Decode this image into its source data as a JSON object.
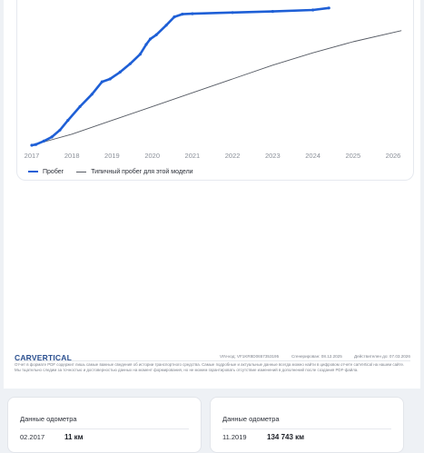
{
  "chart_data": {
    "type": "line",
    "x_ticks": [
      "2017",
      "2018",
      "2019",
      "2020",
      "2021",
      "2022",
      "2023",
      "2024",
      "2025",
      "2026"
    ],
    "xlim": [
      2017,
      2026
    ],
    "grid": false,
    "legend_position": "bottom-left",
    "series": [
      {
        "name": "Пробег",
        "color": "#1e5fd6",
        "style": "solid-thick",
        "points": [
          [
            2017.0,
            0
          ],
          [
            2017.1,
            0.5
          ],
          [
            2017.3,
            3
          ],
          [
            2017.5,
            6
          ],
          [
            2017.7,
            11
          ],
          [
            2017.9,
            18
          ],
          [
            2018.2,
            28
          ],
          [
            2018.5,
            37
          ],
          [
            2018.75,
            46
          ],
          [
            2018.95,
            48
          ],
          [
            2019.2,
            53
          ],
          [
            2019.45,
            59
          ],
          [
            2019.7,
            66
          ],
          [
            2019.85,
            73
          ],
          [
            2019.95,
            77
          ],
          [
            2020.1,
            80
          ],
          [
            2020.35,
            87
          ],
          [
            2020.55,
            93
          ],
          [
            2020.75,
            95
          ],
          [
            2021.0,
            95.3
          ],
          [
            2022.0,
            96.2
          ],
          [
            2023.0,
            97.0
          ],
          [
            2024.0,
            98.0
          ],
          [
            2024.4,
            99.5
          ]
        ]
      },
      {
        "name": "Типичный пробег для этой модели",
        "color": "#555a63",
        "style": "thin",
        "points": [
          [
            2017.0,
            0
          ],
          [
            2018.0,
            8
          ],
          [
            2019.0,
            18
          ],
          [
            2020.0,
            28
          ],
          [
            2021.0,
            38
          ],
          [
            2022.0,
            48
          ],
          [
            2023.0,
            58
          ],
          [
            2024.0,
            67
          ],
          [
            2025.0,
            75
          ],
          [
            2026.2,
            83
          ]
        ]
      }
    ]
  },
  "footer": {
    "logo": "CARVERTICAL",
    "vin": "VIN-код: VF1KR8D0657353195",
    "generated": "Сгенерирован: 08.12.2025",
    "valid": "Действителен до: 07.03.2026",
    "disclaimer": "Отчет в формате PDF содержит лишь самые важные сведения об истории транспортного средства. Самые подробные и актуальные данные всегда можно найти в цифровом отчете carVertical на нашем сайте. Мы тщательно следим за точностью и достоверностью данных на момент формирования, но не можем гарантировать отсутствие изменений в дополнений после создания PDF-файла."
  },
  "odometer_cards": [
    {
      "title": "Данные одометра",
      "date": "02.2017",
      "value": "11 км"
    },
    {
      "title": "Данные одометра",
      "date": "11.2019",
      "value": "134 743 км"
    }
  ]
}
